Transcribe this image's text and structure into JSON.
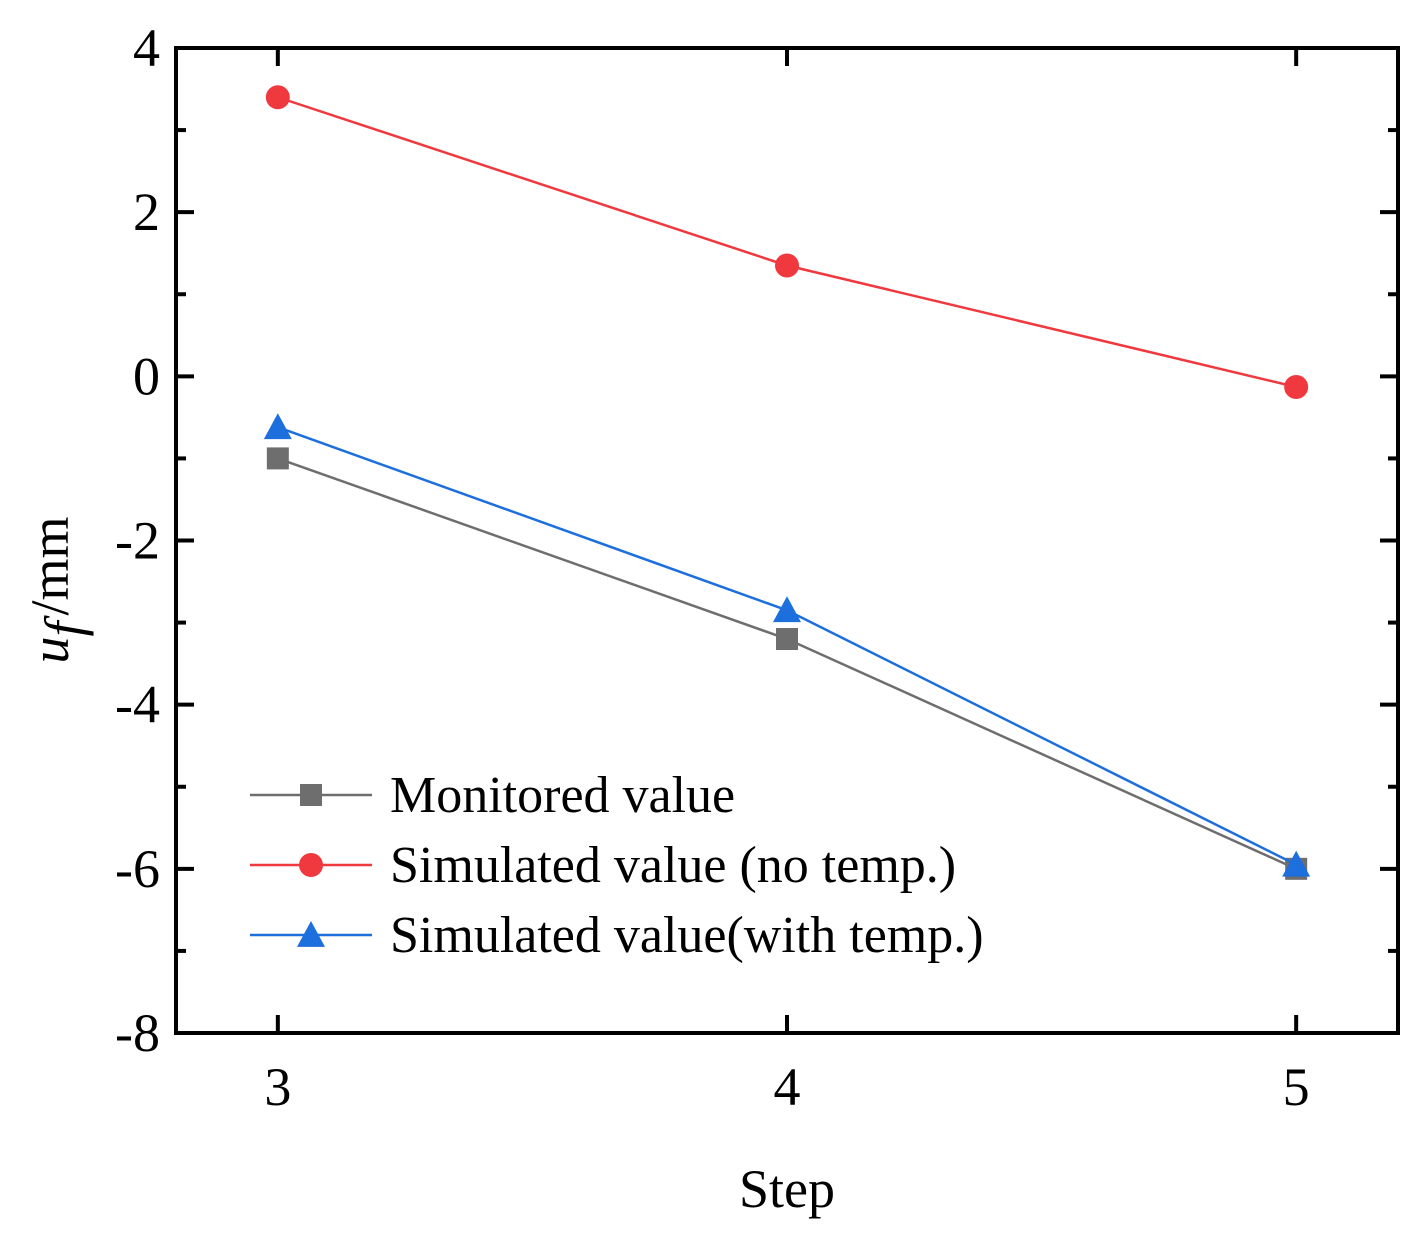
{
  "chart_data": {
    "type": "line",
    "title": "",
    "xlabel": "Step",
    "ylabel": {
      "var": "u",
      "sub": "f",
      "unit": "/mm"
    },
    "x": [
      3,
      4,
      5
    ],
    "xlim": [
      2.8,
      5.2
    ],
    "ylim": [
      -8,
      4
    ],
    "xticks": [
      3,
      4,
      5
    ],
    "yticks": [
      -8,
      -6,
      -4,
      -2,
      0,
      2,
      4
    ],
    "xtick_labels": [
      "3",
      "4",
      "5"
    ],
    "ytick_labels": [
      "-8",
      "-6",
      "-4",
      "-2",
      "0",
      "2",
      "4"
    ],
    "grid": false,
    "legend_position": "bottom-left",
    "series": [
      {
        "name": "Monitored value",
        "values": [
          -1.0,
          -3.2,
          -6.0
        ],
        "color": "#6e6e6e",
        "marker": "square"
      },
      {
        "name": "Simulated value (no temp.)",
        "values": [
          3.4,
          1.35,
          -0.13
        ],
        "color": "#f0393f",
        "marker": "circle"
      },
      {
        "name": "Simulated value(with temp.)",
        "values": [
          -0.62,
          -2.85,
          -5.95
        ],
        "color": "#1c6fdc",
        "marker": "triangle"
      }
    ]
  }
}
